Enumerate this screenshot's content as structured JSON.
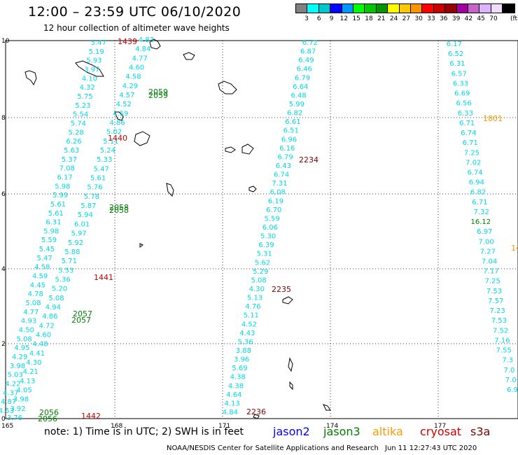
{
  "title": "12:00 – 23:59 UTC 06/10/2020",
  "subtitle": "12 hour collection of altimeter wave heights",
  "colorbar": {
    "colors": [
      "#808080",
      "#00ffff",
      "#00c8c8",
      "#0000ff",
      "#0096ff",
      "#00ff00",
      "#00c800",
      "#009600",
      "#ffff00",
      "#ffc800",
      "#ff9600",
      "#ff0000",
      "#c80000",
      "#960000",
      "#a000a0",
      "#c864c8",
      "#dcb4ff",
      "#f0dcff",
      "#000000"
    ],
    "labels": [
      "3",
      "6",
      "9",
      "12",
      "15",
      "18",
      "21",
      "24",
      "27",
      "30",
      "33",
      "36",
      "39",
      "42",
      "45",
      "70"
    ],
    "unit": "(ft)"
  },
  "axes": {
    "x_ticks": [
      "165",
      "168",
      "171",
      "174",
      "177"
    ],
    "y_ticks": [
      "0",
      "2",
      "4",
      "6",
      "8",
      "10"
    ]
  },
  "map_data": {
    "track_colors": {
      "jason2": "#00d8e8",
      "jason3": "#008000",
      "altika": "#ff9900",
      "cryosat": "#cc0000",
      "s3a": "#800000"
    },
    "tracks": [
      {
        "id": "L1",
        "values": [
          "5.47",
          "5.19",
          "5.93",
          "3.97",
          "4.10",
          "4.32",
          "5.75",
          "5.23",
          "5.54",
          "5.74",
          "5.28",
          "6.26",
          "5.63",
          "5.37",
          "7.08",
          "6.17",
          "5.98",
          "5.99",
          "5.61",
          "5.61",
          "6.31",
          "5.98",
          "5.59",
          "5.45",
          "5.47",
          "4.58",
          "4.59",
          "4.45",
          "4.78",
          "5.08",
          "4.77",
          "4.93",
          "4.50",
          "5.08",
          "4.95",
          "4.29",
          "3.98",
          "5.03",
          "4.22",
          "4.37",
          "4.87",
          "4.53"
        ]
      },
      {
        "id": "L1b",
        "values": [
          "4.83",
          "4.84",
          "4.77",
          "4.60",
          "4.58",
          "4.29",
          "4.57",
          "4.52",
          "4.59",
          "4.86",
          "5.02",
          "5.11",
          "5.24",
          "5.33",
          "5.47",
          "5.61",
          "5.76",
          "5.78",
          "5.87",
          "5.94",
          "6.01",
          "5.97",
          "5.92",
          "5.88",
          "5.71",
          "5.53",
          "5.36",
          "5.20",
          "5.08",
          "4.94",
          "4.86",
          "4.72",
          "4.60",
          "4.48",
          "4.41",
          "4.30",
          "4.21",
          "4.13",
          "4.05",
          "3.98",
          "3.92",
          "3.76"
        ]
      },
      {
        "id": "L2",
        "values": [
          "6.72",
          "6.87",
          "6.49",
          "6.46",
          "6.79",
          "6.64",
          "6.48",
          "5.99",
          "6.82",
          "6.61",
          "6.51",
          "6.96",
          "6.16",
          "6.79",
          "6.43",
          "6.74",
          "7.31",
          "6.08",
          "6.19",
          "6.70",
          "5.59",
          "6.06",
          "5.30",
          "6.39",
          "5.31",
          "5.62",
          "5.29",
          "5.08",
          "4.30",
          "5.13",
          "4.76",
          "5.11",
          "4.52",
          "4.43",
          "5.36",
          "3.88",
          "3.96",
          "5.69",
          "4.38",
          "4.38",
          "4.64",
          "4.13",
          "4.84"
        ]
      },
      {
        "id": "L3",
        "values": [
          "6.17",
          "6.52",
          "6.31",
          "6.57",
          "6.33",
          "6.69",
          "6.56",
          "6.33",
          "6.71",
          "6.74",
          "6.71",
          "7.25",
          "7.02",
          "6.74",
          "6.94",
          "6.82",
          "6.71",
          "7.32",
          "16.12",
          "6.97",
          "7.00",
          "7.27",
          "7.04",
          "7.17",
          "7.25",
          "7.53",
          "7.57",
          "7.23",
          "7.53",
          "7.52",
          "7.16",
          "7.55",
          "7.3",
          "7.0",
          "7.0",
          "6.9"
        ]
      }
    ],
    "time_labels": [
      {
        "text": "1439",
        "sat": "cryosat"
      },
      {
        "text": "1440",
        "sat": "cryosat"
      },
      {
        "text": "1441",
        "sat": "cryosat"
      },
      {
        "text": "1442",
        "sat": "cryosat"
      },
      {
        "text": "2059",
        "sat": "jason3"
      },
      {
        "text": "2059",
        "sat": "jason3"
      },
      {
        "text": "2058",
        "sat": "jason3"
      },
      {
        "text": "2058",
        "sat": "jason3"
      },
      {
        "text": "2057",
        "sat": "jason3"
      },
      {
        "text": "2057",
        "sat": "jason3"
      },
      {
        "text": "2056",
        "sat": "jason3"
      },
      {
        "text": "2056",
        "sat": "jason3"
      },
      {
        "text": "2234",
        "sat": "s3a"
      },
      {
        "text": "2235",
        "sat": "s3a"
      },
      {
        "text": "2236",
        "sat": "s3a"
      },
      {
        "text": "1801",
        "sat": "altika"
      },
      {
        "text": "14",
        "sat": "altika"
      }
    ],
    "highlight_value": {
      "text": "16.12",
      "sat": "jason3"
    }
  },
  "note": "note:  1) Time is in UTC;  2) SWH is in feet",
  "legend": [
    {
      "name": "jason2",
      "color": "#0000ff"
    },
    {
      "name": "jason3",
      "color": "#008000"
    },
    {
      "name": "altika",
      "color": "#ff9900"
    },
    {
      "name": "cryosat",
      "color": "#cc0000"
    },
    {
      "name": "s3a",
      "color": "#800000"
    }
  ],
  "credit": "NOAA/NESDIS Center for Satellite Applications and Research",
  "timestamp": "Jun 11 12:27:43 UTC 2020"
}
